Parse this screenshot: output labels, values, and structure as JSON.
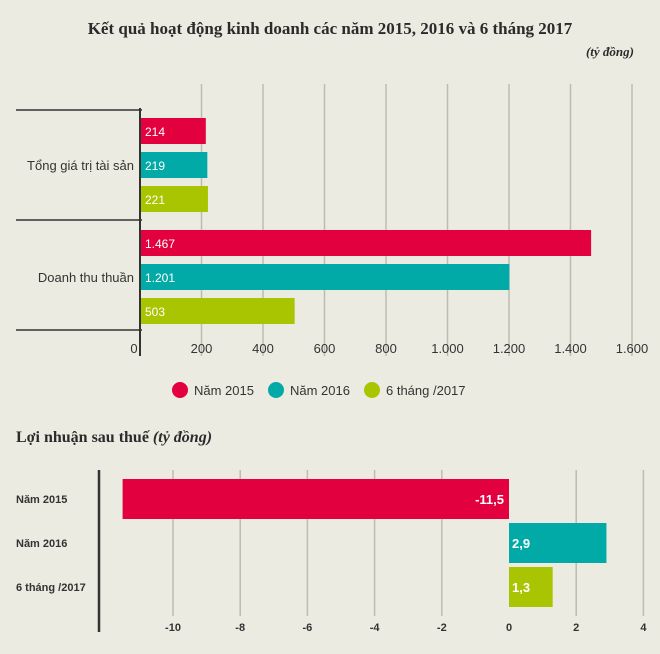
{
  "chart_data": [
    {
      "type": "bar",
      "orientation": "horizontal",
      "title": "Kết quả hoạt động kinh doanh các năm 2015, 2016 và 6 tháng 2017",
      "unit": "(tỷ đồng)",
      "categories": [
        "Tổng giá trị tài sản",
        "Doanh thu thuần"
      ],
      "series": [
        {
          "name": "Năm 2015",
          "color": "#e3003f",
          "values": [
            214,
            1467
          ],
          "labels": [
            "214",
            "1.467"
          ]
        },
        {
          "name": "Năm 2016",
          "color": "#02aaa7",
          "values": [
            219,
            1201
          ],
          "labels": [
            "219",
            "1.201"
          ]
        },
        {
          "name": "6 tháng /2017",
          "color": "#a9c400",
          "values": [
            221,
            503
          ],
          "labels": [
            "221",
            "503"
          ]
        }
      ],
      "xlim": [
        0,
        1600
      ],
      "xticks": [
        0,
        200,
        400,
        600,
        800,
        1000,
        1200,
        1400,
        1600
      ],
      "xtick_labels": [
        "0",
        "200",
        "400",
        "600",
        "800",
        "1.000",
        "1.200",
        "1.400",
        "1.600"
      ],
      "legend_position": "bottom"
    },
    {
      "type": "bar",
      "orientation": "horizontal",
      "title": "Lợi nhuận sau thuế",
      "unit": "(tỷ đồng)",
      "categories": [
        "Năm 2015",
        "Năm 2016",
        "6 tháng /2017"
      ],
      "values": [
        -11.5,
        2.9,
        1.3
      ],
      "labels": [
        "-11,5",
        "2,9",
        "1,3"
      ],
      "colors": [
        "#e3003f",
        "#02aaa7",
        "#a9c400"
      ],
      "xlim": [
        -12,
        4
      ],
      "xticks": [
        -10,
        -8,
        -6,
        -4,
        -2,
        0,
        2,
        4
      ],
      "xtick_labels": [
        "-10",
        "-8",
        "-6",
        "-4",
        "-2",
        "0",
        "2",
        "4"
      ]
    }
  ]
}
